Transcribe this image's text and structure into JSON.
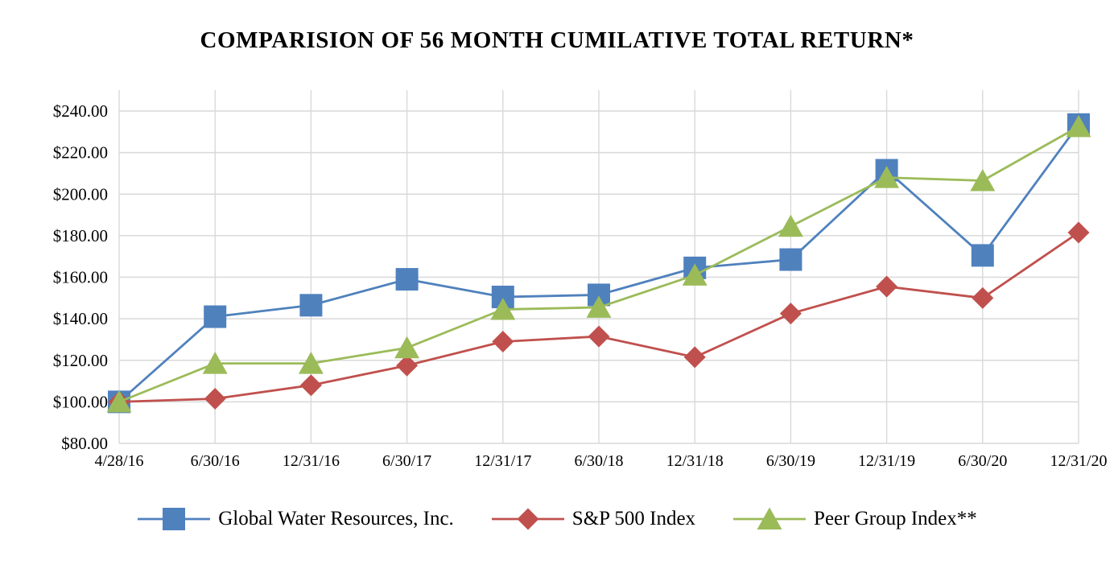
{
  "title": "COMPARISION OF 56 MONTH CUMILATIVE TOTAL RETURN*",
  "chart_data": {
    "type": "line",
    "title": "COMPARISION OF 56 MONTH CUMILATIVE TOTAL RETURN*",
    "categories": [
      "4/28/16",
      "6/30/16",
      "12/31/16",
      "6/30/17",
      "12/31/17",
      "6/30/18",
      "12/31/18",
      "6/30/19",
      "12/31/19",
      "6/30/20",
      "12/31/20"
    ],
    "series": [
      {
        "name": "Global Water Resources, Inc.",
        "marker": "square",
        "color": "#4F81BD",
        "values": [
          100,
          141,
          146.5,
          159,
          150.5,
          151.5,
          164.5,
          168.5,
          211.5,
          170.5,
          233.5
        ]
      },
      {
        "name": "S&P 500 Index",
        "marker": "diamond",
        "color": "#C0504D",
        "values": [
          100,
          101.5,
          108,
          117.5,
          129,
          131.5,
          121.5,
          142.5,
          155.5,
          150,
          181.5
        ]
      },
      {
        "name": "Peer Group Index**",
        "marker": "triangle",
        "color": "#9BBB59",
        "values": [
          100,
          118.5,
          118.5,
          126,
          144.5,
          145.5,
          161,
          184.5,
          208,
          206.5,
          232.5
        ]
      }
    ],
    "xlabel": "",
    "ylabel": "",
    "ylim": [
      80,
      250
    ],
    "yticks": [
      80,
      100,
      120,
      140,
      160,
      180,
      200,
      220,
      240
    ],
    "ytick_labels": [
      "$80.00",
      "$100.00",
      "$120.00",
      "$140.00",
      "$160.00",
      "$180.00",
      "$200.00",
      "$220.00",
      "$240.00"
    ],
    "grid": true,
    "gridline_color": "#D9D9D9",
    "legend_position": "bottom"
  }
}
